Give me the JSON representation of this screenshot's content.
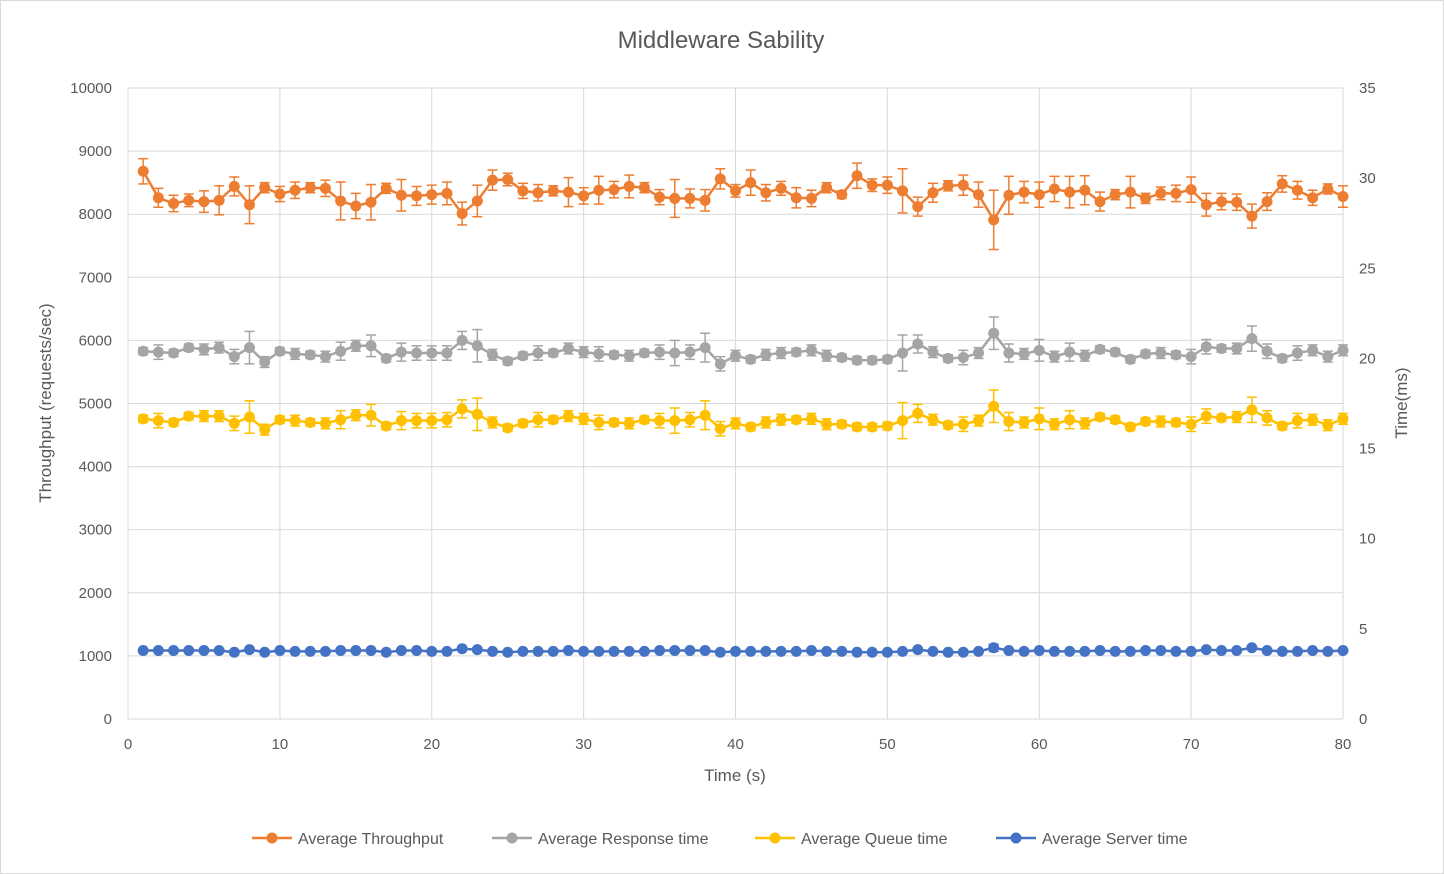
{
  "chart_data": {
    "type": "line",
    "title": "Middleware Sability",
    "xlabel": "Time (s)",
    "ylabel_left": "Throughput (requests/sec)",
    "ylabel_right": "Time(ms)",
    "xlim": [
      0,
      80
    ],
    "ylim_left": [
      0,
      10000
    ],
    "ylim_right": [
      0,
      35
    ],
    "x_ticks": [
      0,
      10,
      20,
      30,
      40,
      50,
      60,
      70,
      80
    ],
    "y_ticks_left": [
      0,
      1000,
      2000,
      3000,
      4000,
      5000,
      6000,
      7000,
      8000,
      9000,
      10000
    ],
    "y_ticks_right": [
      0,
      5,
      10,
      15,
      20,
      25,
      30,
      35
    ],
    "grid": true,
    "legend_position": "bottom",
    "x": [
      1,
      2,
      3,
      4,
      5,
      6,
      7,
      8,
      9,
      10,
      11,
      12,
      13,
      14,
      15,
      16,
      17,
      18,
      19,
      20,
      21,
      22,
      23,
      24,
      25,
      26,
      27,
      28,
      29,
      30,
      31,
      32,
      33,
      34,
      35,
      36,
      37,
      38,
      39,
      40,
      41,
      42,
      43,
      44,
      45,
      46,
      47,
      48,
      49,
      50,
      51,
      52,
      53,
      54,
      55,
      56,
      57,
      58,
      59,
      60,
      61,
      62,
      63,
      64,
      65,
      66,
      67,
      68,
      69,
      70,
      71,
      72,
      73,
      74,
      75,
      76,
      77,
      78,
      79,
      80
    ],
    "series": [
      {
        "name": "Average Throughput",
        "axis": "left",
        "color": "#ED7D31",
        "values": [
          8680,
          8260,
          8170,
          8220,
          8200,
          8220,
          8440,
          8150,
          8420,
          8320,
          8380,
          8420,
          8410,
          8210,
          8130,
          8190,
          8410,
          8300,
          8290,
          8310,
          8330,
          8010,
          8210,
          8540,
          8550,
          8370,
          8340,
          8370,
          8350,
          8290,
          8380,
          8390,
          8440,
          8420,
          8270,
          8250,
          8250,
          8220,
          8560,
          8370,
          8500,
          8340,
          8410,
          8260,
          8250,
          8420,
          8310,
          8610,
          8460,
          8460,
          8370,
          8120,
          8340,
          8450,
          8460,
          8310,
          7910,
          8300,
          8350,
          8310,
          8400,
          8350,
          8380,
          8200,
          8310,
          8350,
          8250,
          8330,
          8330,
          8390,
          8150,
          8200,
          8190,
          7970,
          8200,
          8480,
          8380,
          8260,
          8400,
          8280
        ],
        "errors": [
          200,
          150,
          130,
          100,
          170,
          230,
          150,
          300,
          80,
          120,
          130,
          80,
          130,
          300,
          200,
          280,
          80,
          250,
          150,
          150,
          180,
          180,
          250,
          160,
          100,
          120,
          130,
          80,
          230,
          130,
          220,
          130,
          180,
          80,
          120,
          300,
          150,
          170,
          160,
          100,
          200,
          130,
          110,
          160,
          130,
          80,
          60,
          200,
          100,
          130,
          350,
          150,
          150,
          80,
          160,
          200,
          470,
          300,
          170,
          200,
          200,
          250,
          230,
          150,
          80,
          250,
          80,
          100,
          130,
          200,
          180,
          130,
          130,
          190,
          140,
          130,
          140,
          120,
          80,
          170
        ]
      },
      {
        "name": "Average Response time",
        "axis": "right",
        "color": "#A5A5A5",
        "values": [
          20.4,
          20.35,
          20.3,
          20.6,
          20.5,
          20.6,
          20.1,
          20.6,
          19.8,
          20.4,
          20.25,
          20.2,
          20.1,
          20.4,
          20.7,
          20.7,
          20.0,
          20.35,
          20.3,
          20.3,
          20.3,
          21.0,
          20.7,
          20.2,
          19.85,
          20.15,
          20.3,
          20.3,
          20.55,
          20.35,
          20.25,
          20.2,
          20.15,
          20.3,
          20.35,
          20.3,
          20.35,
          20.6,
          19.7,
          20.15,
          19.95,
          20.2,
          20.3,
          20.35,
          20.45,
          20.15,
          20.05,
          19.9,
          19.9,
          19.95,
          20.3,
          20.8,
          20.35,
          20.0,
          20.05,
          20.3,
          21.4,
          20.3,
          20.25,
          20.45,
          20.1,
          20.35,
          20.15,
          20.5,
          20.35,
          19.95,
          20.25,
          20.3,
          20.2,
          20.1,
          20.65,
          20.55,
          20.55,
          21.1,
          20.4,
          20.0,
          20.3,
          20.45,
          20.1,
          20.45
        ],
        "errors": [
          0.2,
          0.4,
          0.2,
          0.2,
          0.3,
          0.3,
          0.4,
          0.9,
          0.3,
          0.2,
          0.3,
          0.2,
          0.3,
          0.5,
          0.3,
          0.6,
          0.2,
          0.5,
          0.4,
          0.4,
          0.4,
          0.5,
          0.9,
          0.3,
          0.2,
          0.2,
          0.4,
          0.2,
          0.3,
          0.3,
          0.4,
          0.2,
          0.3,
          0.2,
          0.4,
          0.7,
          0.4,
          0.8,
          0.4,
          0.3,
          0.2,
          0.3,
          0.3,
          0.2,
          0.3,
          0.3,
          0.2,
          0.2,
          0.2,
          0.2,
          1.0,
          0.5,
          0.3,
          0.2,
          0.4,
          0.3,
          0.9,
          0.5,
          0.3,
          0.6,
          0.3,
          0.5,
          0.3,
          0.2,
          0.2,
          0.2,
          0.2,
          0.3,
          0.2,
          0.4,
          0.4,
          0.2,
          0.3,
          0.7,
          0.4,
          0.2,
          0.4,
          0.3,
          0.3,
          0.3
        ]
      },
      {
        "name": "Average Queue time",
        "axis": "right",
        "color": "#FFC000",
        "values": [
          16.65,
          16.55,
          16.45,
          16.8,
          16.8,
          16.8,
          16.4,
          16.75,
          16.05,
          16.6,
          16.55,
          16.45,
          16.4,
          16.6,
          16.85,
          16.85,
          16.25,
          16.55,
          16.55,
          16.55,
          16.6,
          17.2,
          16.9,
          16.45,
          16.15,
          16.4,
          16.6,
          16.6,
          16.8,
          16.65,
          16.45,
          16.45,
          16.4,
          16.6,
          16.55,
          16.55,
          16.6,
          16.85,
          16.1,
          16.4,
          16.2,
          16.45,
          16.6,
          16.6,
          16.65,
          16.35,
          16.35,
          16.2,
          16.2,
          16.25,
          16.55,
          16.95,
          16.6,
          16.3,
          16.35,
          16.55,
          17.35,
          16.5,
          16.45,
          16.65,
          16.35,
          16.6,
          16.4,
          16.75,
          16.6,
          16.2,
          16.5,
          16.5,
          16.45,
          16.35,
          16.8,
          16.7,
          16.75,
          17.15,
          16.7,
          16.25,
          16.55,
          16.6,
          16.3,
          16.65
        ],
        "errors": [
          0.2,
          0.4,
          0.2,
          0.2,
          0.3,
          0.3,
          0.4,
          0.9,
          0.3,
          0.2,
          0.3,
          0.2,
          0.3,
          0.5,
          0.3,
          0.6,
          0.2,
          0.5,
          0.4,
          0.4,
          0.4,
          0.5,
          0.9,
          0.3,
          0.2,
          0.2,
          0.4,
          0.2,
          0.3,
          0.3,
          0.4,
          0.2,
          0.3,
          0.2,
          0.4,
          0.7,
          0.4,
          0.8,
          0.4,
          0.3,
          0.2,
          0.3,
          0.3,
          0.2,
          0.3,
          0.3,
          0.2,
          0.2,
          0.2,
          0.2,
          1.0,
          0.5,
          0.3,
          0.2,
          0.4,
          0.3,
          0.9,
          0.5,
          0.3,
          0.6,
          0.3,
          0.5,
          0.3,
          0.2,
          0.2,
          0.2,
          0.2,
          0.3,
          0.2,
          0.4,
          0.4,
          0.2,
          0.3,
          0.7,
          0.4,
          0.2,
          0.4,
          0.3,
          0.3,
          0.3
        ]
      },
      {
        "name": "Average Server time",
        "axis": "right",
        "color": "#4472C4",
        "values": [
          3.8,
          3.8,
          3.8,
          3.8,
          3.8,
          3.8,
          3.7,
          3.85,
          3.7,
          3.8,
          3.75,
          3.75,
          3.75,
          3.8,
          3.8,
          3.8,
          3.7,
          3.8,
          3.8,
          3.75,
          3.75,
          3.9,
          3.85,
          3.75,
          3.7,
          3.75,
          3.75,
          3.75,
          3.8,
          3.75,
          3.75,
          3.75,
          3.75,
          3.75,
          3.8,
          3.8,
          3.8,
          3.8,
          3.7,
          3.75,
          3.75,
          3.75,
          3.75,
          3.75,
          3.8,
          3.75,
          3.75,
          3.7,
          3.7,
          3.7,
          3.75,
          3.85,
          3.75,
          3.7,
          3.7,
          3.75,
          3.95,
          3.8,
          3.75,
          3.8,
          3.75,
          3.75,
          3.75,
          3.8,
          3.75,
          3.75,
          3.8,
          3.8,
          3.75,
          3.75,
          3.85,
          3.8,
          3.8,
          3.95,
          3.8,
          3.75,
          3.75,
          3.8,
          3.75,
          3.8
        ],
        "errors": [
          0.08,
          0.08,
          0.08,
          0.08,
          0.08,
          0.08,
          0.08,
          0.1,
          0.08,
          0.08,
          0.08,
          0.08,
          0.08,
          0.08,
          0.08,
          0.1,
          0.08,
          0.08,
          0.08,
          0.08,
          0.08,
          0.1,
          0.1,
          0.08,
          0.08,
          0.08,
          0.08,
          0.08,
          0.08,
          0.08,
          0.08,
          0.08,
          0.08,
          0.08,
          0.08,
          0.08,
          0.08,
          0.1,
          0.08,
          0.08,
          0.08,
          0.08,
          0.08,
          0.08,
          0.08,
          0.08,
          0.08,
          0.08,
          0.08,
          0.08,
          0.1,
          0.1,
          0.08,
          0.08,
          0.08,
          0.08,
          0.2,
          0.1,
          0.08,
          0.08,
          0.08,
          0.08,
          0.08,
          0.08,
          0.08,
          0.08,
          0.08,
          0.08,
          0.08,
          0.08,
          0.08,
          0.08,
          0.08,
          0.1,
          0.08,
          0.08,
          0.08,
          0.08,
          0.08,
          0.08
        ]
      }
    ]
  }
}
